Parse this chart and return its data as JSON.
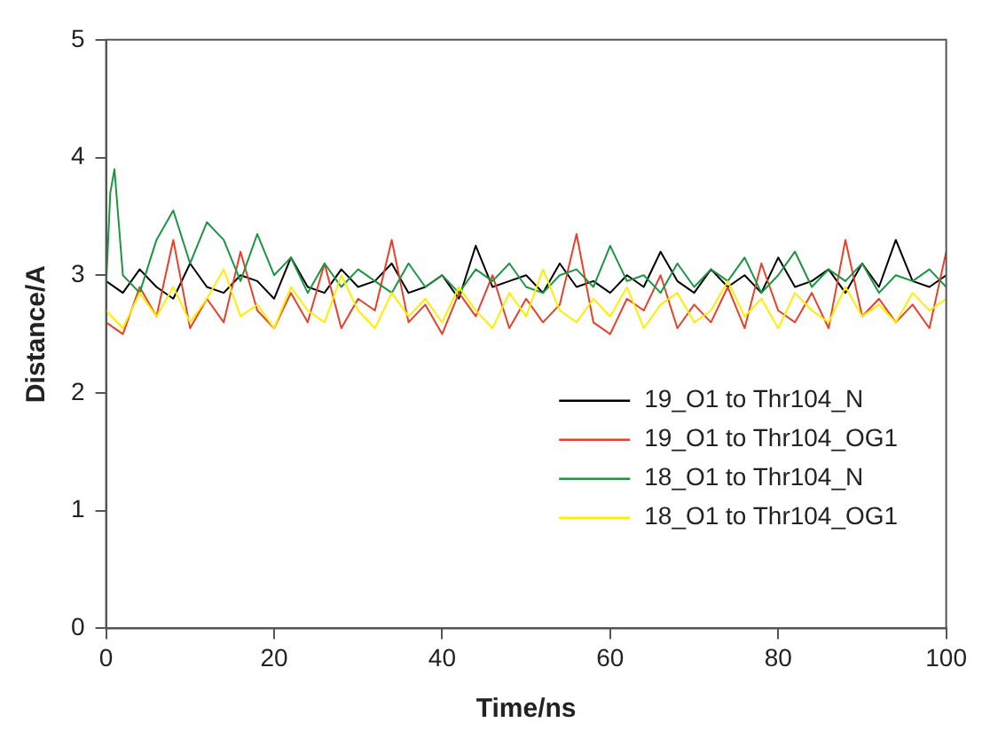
{
  "chart_data": {
    "type": "line",
    "xlabel": "Time/ns",
    "ylabel": "Distance/A",
    "xlim": [
      0,
      100
    ],
    "xticks": [
      0,
      20,
      40,
      60,
      80,
      100
    ],
    "ylim": [
      0,
      5
    ],
    "yticks": [
      0,
      1,
      2,
      3,
      4,
      5
    ],
    "grid": false,
    "legend": "right",
    "marker": "none",
    "line_style": "solid",
    "x": [
      0,
      2,
      4,
      6,
      8,
      10,
      12,
      14,
      16,
      18,
      20,
      22,
      24,
      26,
      28,
      30,
      32,
      34,
      36,
      38,
      40,
      42,
      44,
      46,
      48,
      50,
      52,
      54,
      56,
      58,
      60,
      62,
      64,
      66,
      68,
      70,
      72,
      74,
      76,
      78,
      80,
      82,
      84,
      86,
      88,
      90,
      92,
      94,
      96,
      98,
      100
    ],
    "series": [
      {
        "name": "19_O1 to Thr104_N",
        "color": "#000000",
        "values": [
          2.95,
          2.85,
          3.05,
          2.9,
          2.8,
          3.1,
          2.9,
          2.85,
          3.0,
          2.95,
          2.8,
          3.15,
          2.9,
          2.85,
          3.05,
          2.9,
          2.95,
          3.1,
          2.85,
          2.9,
          3.0,
          2.8,
          3.25,
          2.9,
          2.95,
          3.0,
          2.85,
          3.1,
          2.9,
          2.95,
          2.85,
          3.0,
          2.9,
          3.2,
          2.95,
          2.85,
          3.05,
          2.9,
          3.0,
          2.85,
          3.15,
          2.9,
          2.95,
          3.05,
          2.85,
          3.1,
          2.9,
          3.3,
          2.95,
          2.9,
          3.0
        ]
      },
      {
        "name": "19_O1 to Thr104_OG1",
        "color": "#e8402a",
        "values": [
          2.6,
          2.5,
          2.9,
          2.65,
          3.3,
          2.55,
          2.8,
          2.6,
          3.2,
          2.7,
          2.55,
          2.85,
          2.6,
          3.1,
          2.55,
          2.8,
          2.7,
          3.3,
          2.6,
          2.75,
          2.5,
          2.85,
          2.65,
          3.0,
          2.55,
          2.8,
          2.6,
          2.75,
          3.35,
          2.6,
          2.5,
          2.8,
          2.7,
          3.0,
          2.55,
          2.75,
          2.6,
          2.9,
          2.55,
          3.1,
          2.7,
          2.6,
          2.85,
          2.55,
          3.3,
          2.65,
          2.8,
          2.6,
          2.75,
          2.55,
          3.2
        ]
      },
      {
        "name": "18_O1 to Thr104_N",
        "color": "#1a9641",
        "x": [
          0,
          0.5,
          1,
          2,
          4,
          6,
          8,
          10,
          12,
          14,
          16,
          18,
          20,
          22,
          24,
          26,
          28,
          30,
          32,
          34,
          36,
          38,
          40,
          42,
          44,
          46,
          48,
          50,
          52,
          54,
          56,
          58,
          60,
          62,
          64,
          66,
          68,
          70,
          72,
          74,
          76,
          78,
          80,
          82,
          84,
          86,
          88,
          90,
          92,
          94,
          96,
          98,
          100
        ],
        "values": [
          2.9,
          3.7,
          3.9,
          3.0,
          2.85,
          3.3,
          3.55,
          3.1,
          3.45,
          3.3,
          2.95,
          3.35,
          3.0,
          3.15,
          2.85,
          3.1,
          2.9,
          3.05,
          2.95,
          2.85,
          3.1,
          2.9,
          3.0,
          2.85,
          3.05,
          2.95,
          3.1,
          2.9,
          2.85,
          3.0,
          3.05,
          2.9,
          3.25,
          2.95,
          3.0,
          2.85,
          3.1,
          2.9,
          3.05,
          2.95,
          3.15,
          2.85,
          3.0,
          3.2,
          2.9,
          3.05,
          2.95,
          3.1,
          2.85,
          3.0,
          2.95,
          3.05,
          2.9
        ]
      },
      {
        "name": "18_O1 to Thr104_OG1",
        "color": "#ffee00",
        "values": [
          2.7,
          2.55,
          2.85,
          2.65,
          2.9,
          2.6,
          2.8,
          3.05,
          2.65,
          2.75,
          2.55,
          2.9,
          2.7,
          2.6,
          3.0,
          2.7,
          2.55,
          2.85,
          2.65,
          2.8,
          2.6,
          2.9,
          2.7,
          2.55,
          2.85,
          2.65,
          3.05,
          2.7,
          2.6,
          2.8,
          2.65,
          2.9,
          2.55,
          2.75,
          2.85,
          2.6,
          2.7,
          2.95,
          2.65,
          2.8,
          2.55,
          2.85,
          2.7,
          2.6,
          2.9,
          2.65,
          2.75,
          2.6,
          2.85,
          2.7,
          2.8
        ]
      }
    ]
  }
}
